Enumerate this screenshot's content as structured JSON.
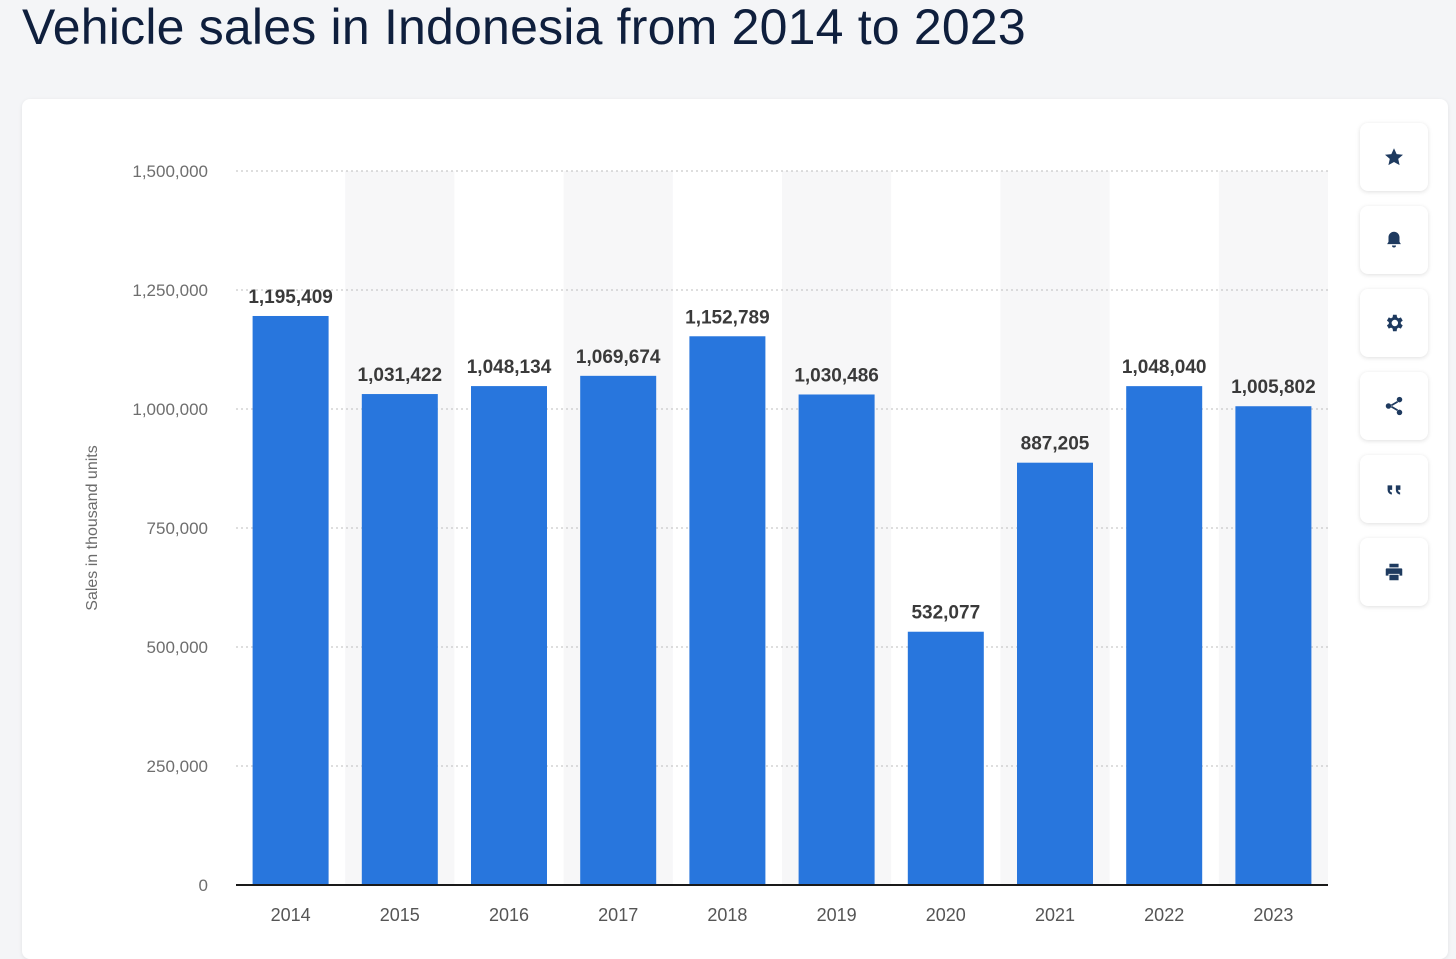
{
  "page": {
    "title": "Vehicle sales in Indonesia from 2014 to 2023"
  },
  "toolbar": {
    "buttons": [
      {
        "icon": "star-icon"
      },
      {
        "icon": "bell-icon"
      },
      {
        "icon": "gear-icon"
      },
      {
        "icon": "share-icon"
      },
      {
        "icon": "quote-icon"
      },
      {
        "icon": "print-icon"
      }
    ]
  },
  "chart_data": {
    "type": "bar",
    "categories": [
      "2014",
      "2015",
      "2016",
      "2017",
      "2018",
      "2019",
      "2020",
      "2021",
      "2022",
      "2023"
    ],
    "values": [
      1195409,
      1031422,
      1048134,
      1069674,
      1152789,
      1030486,
      532077,
      887205,
      1048040,
      1005802
    ],
    "data_labels": [
      "1,195,409",
      "1,031,422",
      "1,048,134",
      "1,069,674",
      "1,152,789",
      "1,030,486",
      "532,077",
      "887,205",
      "1,048,040",
      "1,005,802"
    ],
    "ylabel": "Sales in thousand units",
    "xlabel": "",
    "ylim": [
      0,
      1500000
    ],
    "yticks": [
      0,
      250000,
      500000,
      750000,
      1000000,
      1250000,
      1500000
    ],
    "ytick_labels": [
      "0",
      "250,000",
      "500,000",
      "750,000",
      "1,000,000",
      "1,250,000",
      "1,500,000"
    ],
    "grid": true,
    "bar_color": "#2876dd"
  }
}
